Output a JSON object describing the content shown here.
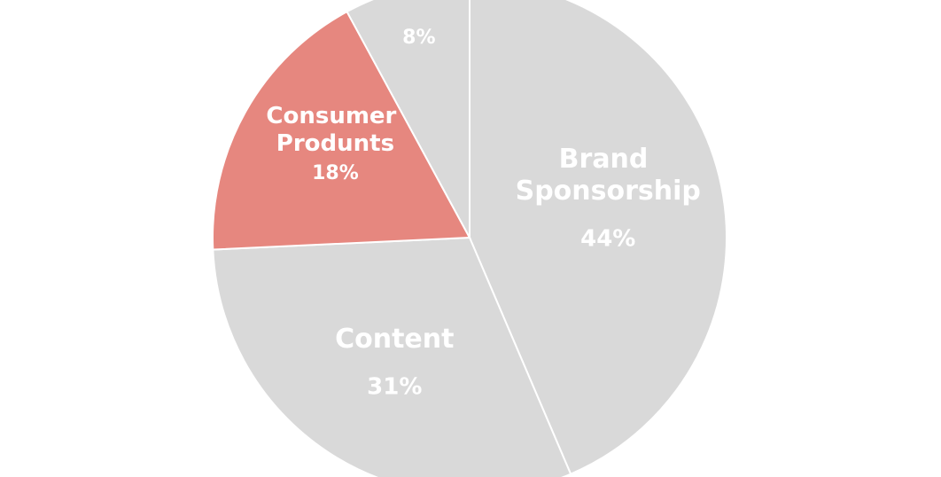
{
  "chart_data": {
    "type": "pie",
    "categories": [
      "Brand Sponsorship",
      "Content",
      "Consumer Produnts",
      null
    ],
    "values": [
      44,
      31,
      18,
      8
    ],
    "value_labels": [
      "44%",
      "31%",
      "18%",
      "8%"
    ],
    "colors": [
      "#d9d9d9",
      "#d9d9d9",
      "#e6877f",
      "#d9d9d9"
    ]
  }
}
